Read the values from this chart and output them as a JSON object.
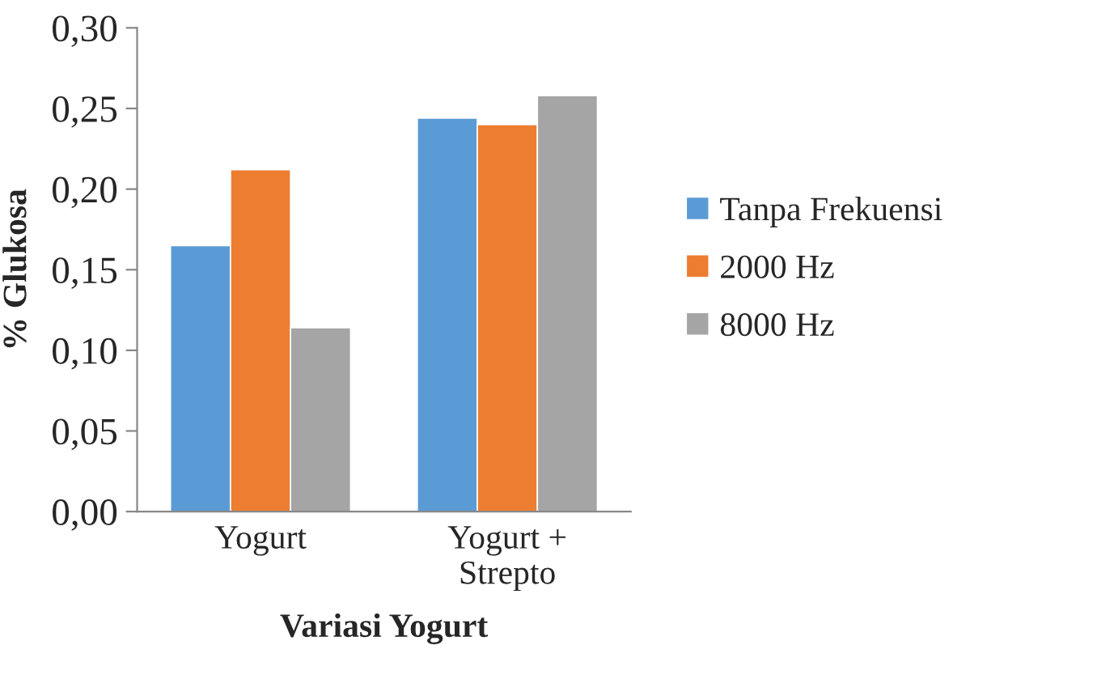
{
  "chart_data": {
    "type": "bar",
    "xlabel": "Variasi Yogurt",
    "ylabel": "% Glukosa",
    "categories": [
      "Yogurt",
      "Yogurt +\nStrepto"
    ],
    "series": [
      {
        "name": "Tanpa Frekuensi",
        "color": "#5b9bd5",
        "values": [
          0.165,
          0.244
        ]
      },
      {
        "name": "2000 Hz",
        "color": "#ed7d31",
        "values": [
          0.212,
          0.24
        ]
      },
      {
        "name": "8000 Hz",
        "color": "#a5a5a5",
        "values": [
          0.114,
          0.258
        ]
      }
    ],
    "ylim": [
      0,
      0.3
    ],
    "yticks": [
      {
        "value": 0,
        "label": "0,00"
      },
      {
        "value": 0.05,
        "label": "0,05"
      },
      {
        "value": 0.1,
        "label": "0,10"
      },
      {
        "value": 0.15,
        "label": "0,15"
      },
      {
        "value": 0.2,
        "label": "0,20"
      },
      {
        "value": 0.25,
        "label": "0,25"
      },
      {
        "value": 0.3,
        "label": "0,30"
      }
    ],
    "grid": false,
    "legend": "right"
  }
}
